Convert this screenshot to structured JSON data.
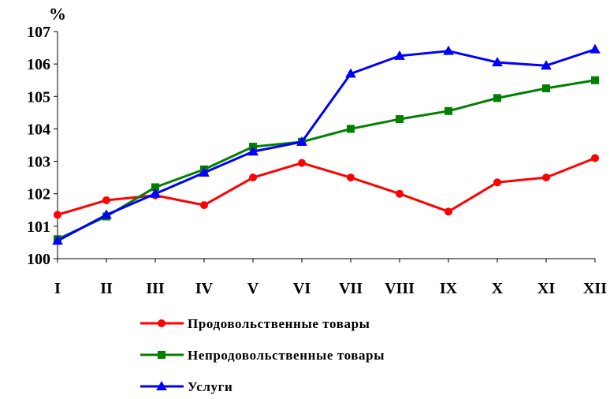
{
  "chart_data": {
    "type": "line",
    "title": "",
    "xlabel": "",
    "ylabel": "%",
    "ylim": [
      100,
      107
    ],
    "yticks": [
      100,
      101,
      102,
      103,
      104,
      105,
      106,
      107
    ],
    "grid": false,
    "legend_position": "bottom",
    "categories": [
      "I",
      "II",
      "III",
      "IV",
      "V",
      "VI",
      "VII",
      "VIII",
      "IX",
      "X",
      "XI",
      "XII"
    ],
    "series": [
      {
        "name": "Продовольственные товары",
        "color": "#ff0000",
        "marker": "circle",
        "values": [
          101.35,
          101.8,
          101.95,
          101.65,
          102.5,
          102.95,
          102.5,
          102.0,
          101.45,
          102.35,
          102.5,
          103.1
        ]
      },
      {
        "name": "Непродовольственные товары",
        "color": "#008000",
        "marker": "square",
        "values": [
          100.6,
          101.3,
          102.2,
          102.75,
          103.45,
          103.6,
          104.0,
          104.3,
          104.55,
          104.95,
          105.25,
          105.5
        ]
      },
      {
        "name": "Услуги",
        "color": "#0000ff",
        "marker": "triangle",
        "values": [
          100.55,
          101.35,
          102.0,
          102.65,
          103.3,
          103.6,
          105.7,
          106.25,
          106.4,
          106.05,
          105.95,
          106.45
        ]
      }
    ]
  }
}
